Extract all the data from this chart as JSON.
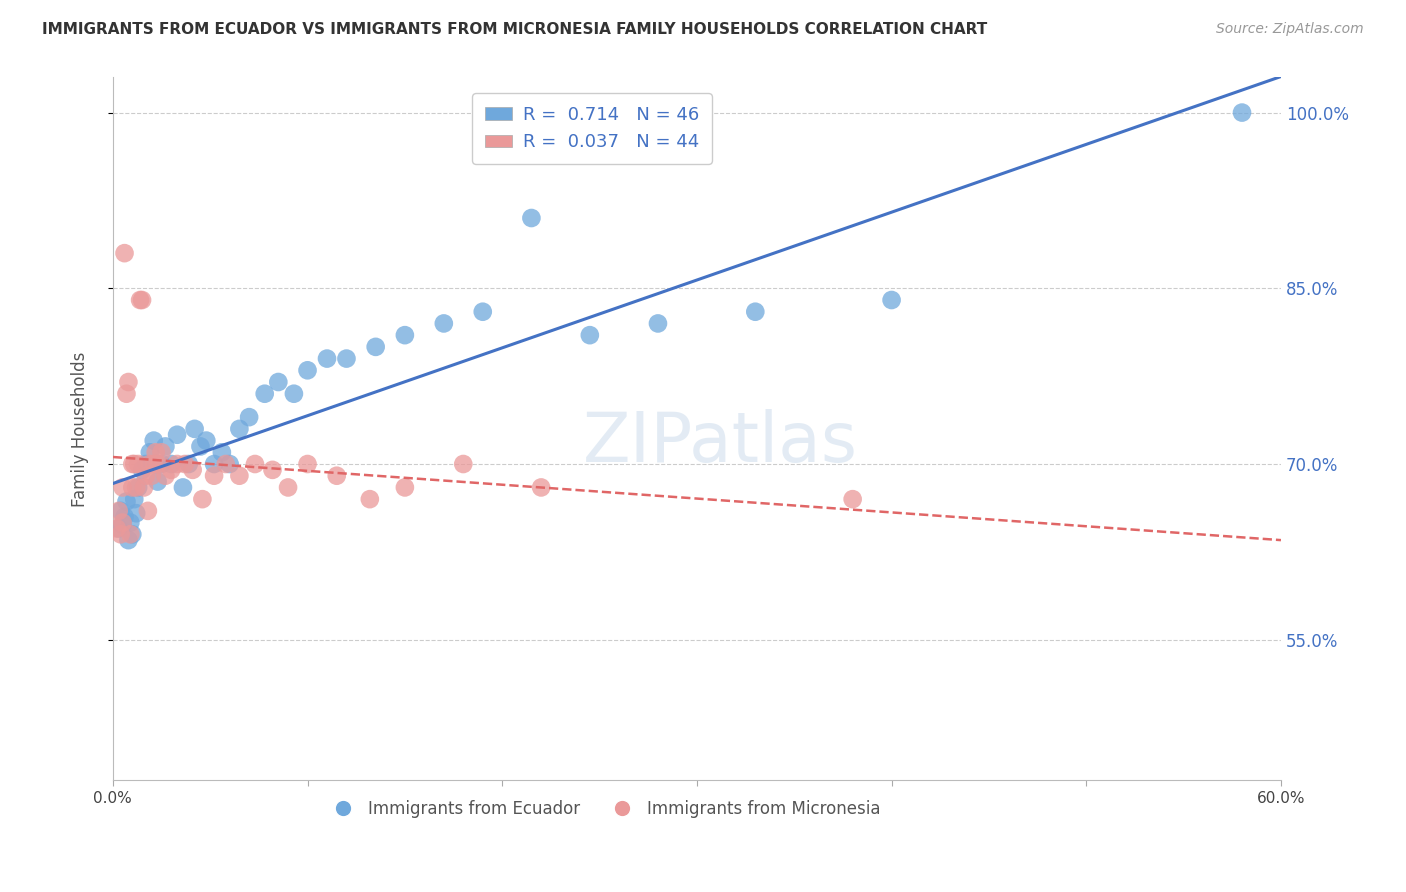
{
  "title": "IMMIGRANTS FROM ECUADOR VS IMMIGRANTS FROM MICRONESIA FAMILY HOUSEHOLDS CORRELATION CHART",
  "source": "Source: ZipAtlas.com",
  "ylabel": "Family Households",
  "xlim": [
    0.0,
    0.6
  ],
  "ylim": [
    0.43,
    1.03
  ],
  "yticks": [
    0.55,
    0.7,
    0.85,
    1.0
  ],
  "ytick_labels": [
    "55.0%",
    "70.0%",
    "85.0%",
    "100.0%"
  ],
  "xticks": [
    0.0,
    0.1,
    0.2,
    0.3,
    0.4,
    0.5,
    0.6
  ],
  "xtick_labels": [
    "0.0%",
    "",
    "",
    "",
    "",
    "",
    "60.0%"
  ],
  "watermark": "ZIPatlas",
  "legend_blue_r": "R =  0.714",
  "legend_blue_n": "N = 46",
  "legend_pink_r": "R =  0.037",
  "legend_pink_n": "N = 44",
  "label_ecuador": "Immigrants from Ecuador",
  "label_micronesia": "Immigrants from Micronesia",
  "blue_color": "#6fa8dc",
  "pink_color": "#ea9999",
  "blue_line_color": "#4472c4",
  "pink_line_color": "#e06666",
  "right_tick_color": "#4472c4",
  "ecuador_x": [
    0.003,
    0.004,
    0.005,
    0.006,
    0.007,
    0.008,
    0.009,
    0.01,
    0.011,
    0.012,
    0.013,
    0.015,
    0.017,
    0.019,
    0.021,
    0.023,
    0.025,
    0.027,
    0.03,
    0.033,
    0.036,
    0.039,
    0.042,
    0.045,
    0.048,
    0.052,
    0.056,
    0.06,
    0.065,
    0.07,
    0.078,
    0.085,
    0.093,
    0.1,
    0.11,
    0.12,
    0.135,
    0.15,
    0.17,
    0.19,
    0.215,
    0.245,
    0.28,
    0.33,
    0.4,
    0.58
  ],
  "ecuador_y": [
    0.645,
    0.66,
    0.648,
    0.655,
    0.668,
    0.635,
    0.65,
    0.64,
    0.67,
    0.658,
    0.68,
    0.695,
    0.7,
    0.71,
    0.72,
    0.685,
    0.7,
    0.715,
    0.7,
    0.725,
    0.68,
    0.7,
    0.73,
    0.715,
    0.72,
    0.7,
    0.71,
    0.7,
    0.73,
    0.74,
    0.76,
    0.77,
    0.76,
    0.78,
    0.79,
    0.79,
    0.8,
    0.81,
    0.82,
    0.83,
    0.91,
    0.81,
    0.82,
    0.83,
    0.84,
    1.0
  ],
  "micronesia_x": [
    0.002,
    0.003,
    0.004,
    0.005,
    0.005,
    0.006,
    0.007,
    0.008,
    0.009,
    0.01,
    0.01,
    0.011,
    0.012,
    0.013,
    0.014,
    0.015,
    0.016,
    0.017,
    0.018,
    0.019,
    0.02,
    0.021,
    0.022,
    0.023,
    0.025,
    0.027,
    0.03,
    0.033,
    0.037,
    0.041,
    0.046,
    0.052,
    0.058,
    0.065,
    0.073,
    0.082,
    0.09,
    0.1,
    0.115,
    0.132,
    0.15,
    0.18,
    0.22,
    0.38
  ],
  "micronesia_y": [
    0.645,
    0.66,
    0.64,
    0.65,
    0.68,
    0.88,
    0.76,
    0.77,
    0.64,
    0.68,
    0.7,
    0.7,
    0.68,
    0.7,
    0.84,
    0.84,
    0.68,
    0.69,
    0.66,
    0.7,
    0.69,
    0.7,
    0.71,
    0.7,
    0.71,
    0.69,
    0.695,
    0.7,
    0.7,
    0.695,
    0.67,
    0.69,
    0.7,
    0.69,
    0.7,
    0.695,
    0.68,
    0.7,
    0.69,
    0.67,
    0.68,
    0.7,
    0.68,
    0.67
  ]
}
